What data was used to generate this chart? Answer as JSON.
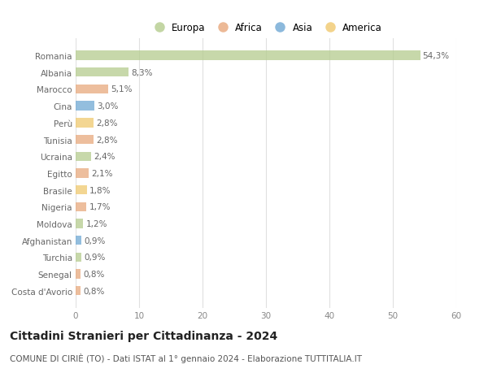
{
  "countries": [
    "Romania",
    "Albania",
    "Marocco",
    "Cina",
    "Perù",
    "Tunisia",
    "Ucraina",
    "Egitto",
    "Brasile",
    "Nigeria",
    "Moldova",
    "Afghanistan",
    "Turchia",
    "Senegal",
    "Costa d'Avorio"
  ],
  "values": [
    54.3,
    8.3,
    5.1,
    3.0,
    2.8,
    2.8,
    2.4,
    2.1,
    1.8,
    1.7,
    1.2,
    0.9,
    0.9,
    0.8,
    0.8
  ],
  "labels": [
    "54,3%",
    "8,3%",
    "5,1%",
    "3,0%",
    "2,8%",
    "2,8%",
    "2,4%",
    "2,1%",
    "1,8%",
    "1,7%",
    "1,2%",
    "0,9%",
    "0,9%",
    "0,8%",
    "0,8%"
  ],
  "continents": [
    "Europa",
    "Europa",
    "Africa",
    "Asia",
    "America",
    "Africa",
    "Europa",
    "Africa",
    "America",
    "Africa",
    "Europa",
    "Asia",
    "Europa",
    "Africa",
    "Africa"
  ],
  "continent_colors": {
    "Europa": "#b5cc8e",
    "Africa": "#e8a87c",
    "Asia": "#6fa8d4",
    "America": "#f0c96e"
  },
  "legend_order": [
    "Europa",
    "Africa",
    "Asia",
    "America"
  ],
  "title": "Cittadini Stranieri per Cittadinanza - 2024",
  "subtitle": "COMUNE DI CIRIÈ (TO) - Dati ISTAT al 1° gennaio 2024 - Elaborazione TUTTITALIA.IT",
  "xlim": [
    0,
    60
  ],
  "xticks": [
    0,
    10,
    20,
    30,
    40,
    50,
    60
  ],
  "background_color": "#ffffff",
  "grid_color": "#e0e0e0",
  "title_fontsize": 10,
  "subtitle_fontsize": 7.5,
  "label_fontsize": 7.5,
  "ytick_fontsize": 7.5,
  "xtick_fontsize": 7.5,
  "bar_height": 0.55
}
